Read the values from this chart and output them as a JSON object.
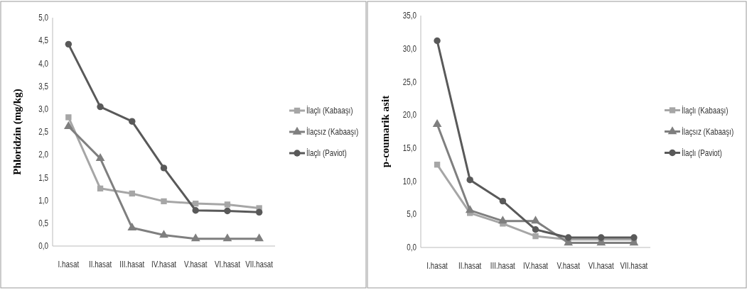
{
  "chart_data": [
    {
      "type": "line",
      "ylabel": "Phloridzin (mg/kg)",
      "categories": [
        "I.hasat",
        "II.hasat",
        "III.hasat",
        "IV.hasat",
        "V.hasat",
        "VI.hasat",
        "VII.hasat"
      ],
      "ylim": [
        0,
        5
      ],
      "yticks": [
        {
          "value": 0,
          "label": "0,0"
        },
        {
          "value": 0.5,
          "label": "0,5"
        },
        {
          "value": 1,
          "label": "1,0"
        },
        {
          "value": 1.5,
          "label": "1,5"
        },
        {
          "value": 2,
          "label": "2,0"
        },
        {
          "value": 2.5,
          "label": "2,5"
        },
        {
          "value": 3,
          "label": "3,0"
        },
        {
          "value": 3.5,
          "label": "3,5"
        },
        {
          "value": 4,
          "label": "4,0"
        },
        {
          "value": 4.5,
          "label": "4,5"
        },
        {
          "value": 5,
          "label": "5,0"
        }
      ],
      "grid": false,
      "legend": "right",
      "series": [
        {
          "name": "İlaçlı (Kabaaşı)",
          "color": "#a6a6a6",
          "marker": "square",
          "values": [
            2.82,
            1.26,
            1.15,
            0.98,
            0.93,
            0.91,
            0.83
          ]
        },
        {
          "name": "İlaçsız (Kabaaşı)",
          "color": "#7f7f7f",
          "marker": "triangle",
          "values": [
            2.62,
            1.92,
            0.4,
            0.24,
            0.16,
            0.16,
            0.16
          ]
        },
        {
          "name": "İlaçlı (Paviot)",
          "color": "#595959",
          "marker": "circle",
          "values": [
            4.42,
            3.05,
            2.73,
            1.71,
            0.78,
            0.77,
            0.74
          ]
        }
      ]
    },
    {
      "type": "line",
      "ylabel": "p-coumarik asit",
      "categories": [
        "I.hasat",
        "II.hasat",
        "III.hasat",
        "IV.hasat",
        "V.hasat",
        "VI.hasat",
        "VII.hasat"
      ],
      "ylim": [
        0,
        35
      ],
      "yticks": [
        {
          "value": 0,
          "label": "0,0"
        },
        {
          "value": 5,
          "label": "5,0"
        },
        {
          "value": 10,
          "label": "10,0"
        },
        {
          "value": 15,
          "label": "15,0"
        },
        {
          "value": 20,
          "label": "20,0"
        },
        {
          "value": 25,
          "label": "25,0"
        },
        {
          "value": 30,
          "label": "30,0"
        },
        {
          "value": 35,
          "label": "35,0"
        }
      ],
      "grid": false,
      "legend": "right",
      "series": [
        {
          "name": "İlaçlı (Kabaaşı)",
          "color": "#a6a6a6",
          "marker": "square",
          "values": [
            12.5,
            5.2,
            3.6,
            1.7,
            1.2,
            1.2,
            1.2
          ]
        },
        {
          "name": "İlaçsız (Kabaaşı)",
          "color": "#7f7f7f",
          "marker": "triangle",
          "values": [
            18.6,
            5.6,
            4.0,
            4.0,
            0.7,
            0.7,
            0.7
          ]
        },
        {
          "name": "İlaçlı (Paviot)",
          "color": "#595959",
          "marker": "circle",
          "values": [
            31.2,
            10.2,
            7.0,
            2.7,
            1.5,
            1.5,
            1.5
          ]
        }
      ]
    }
  ]
}
